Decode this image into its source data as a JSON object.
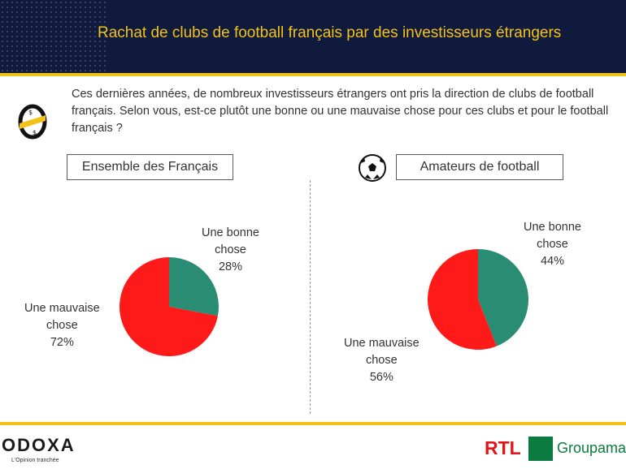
{
  "header": {
    "title": "Rachat de clubs de football français par des investisseurs étrangers"
  },
  "question": "Ces dernières années, de nombreux investisseurs étrangers ont pris la direction de clubs de football français. Selon vous, est-ce plutôt une bonne ou une mauvaise chose pour ces clubs et pour le football français ?",
  "colors": {
    "good": "#2a8c72",
    "bad": "#ff1a1a",
    "header_bg": "#0f1a3c",
    "accent": "#f3c21a"
  },
  "icons": {
    "question_icon": "coin-icon",
    "amateurs_icon": "soccer-ball-icon"
  },
  "chart_data": [
    {
      "type": "pie",
      "title": "Ensemble des Français",
      "slices": [
        {
          "label": "Une bonne chose",
          "value": 28,
          "display": "28%"
        },
        {
          "label": "Une mauvaise chose",
          "value": 72,
          "display": "72%"
        }
      ]
    },
    {
      "type": "pie",
      "title": "Amateurs de football",
      "slices": [
        {
          "label": "Une bonne chose",
          "value": 44,
          "display": "44%"
        },
        {
          "label": "Une mauvaise chose",
          "value": 56,
          "display": "56%"
        }
      ]
    }
  ],
  "labels": {
    "left_good": [
      "Une bonne",
      "chose",
      "28%"
    ],
    "left_bad": [
      "Une mauvaise",
      "chose",
      "72%"
    ],
    "right_good": [
      "Une bonne",
      "chose",
      "44%"
    ],
    "right_bad": [
      "Une mauvaise",
      "chose",
      "56%"
    ]
  },
  "footer": {
    "logo_odoxa": "ODOXA",
    "tagline": "L'Opinion tranchée",
    "logo_rtl": "RTL",
    "logo_groupama": "Groupama"
  }
}
